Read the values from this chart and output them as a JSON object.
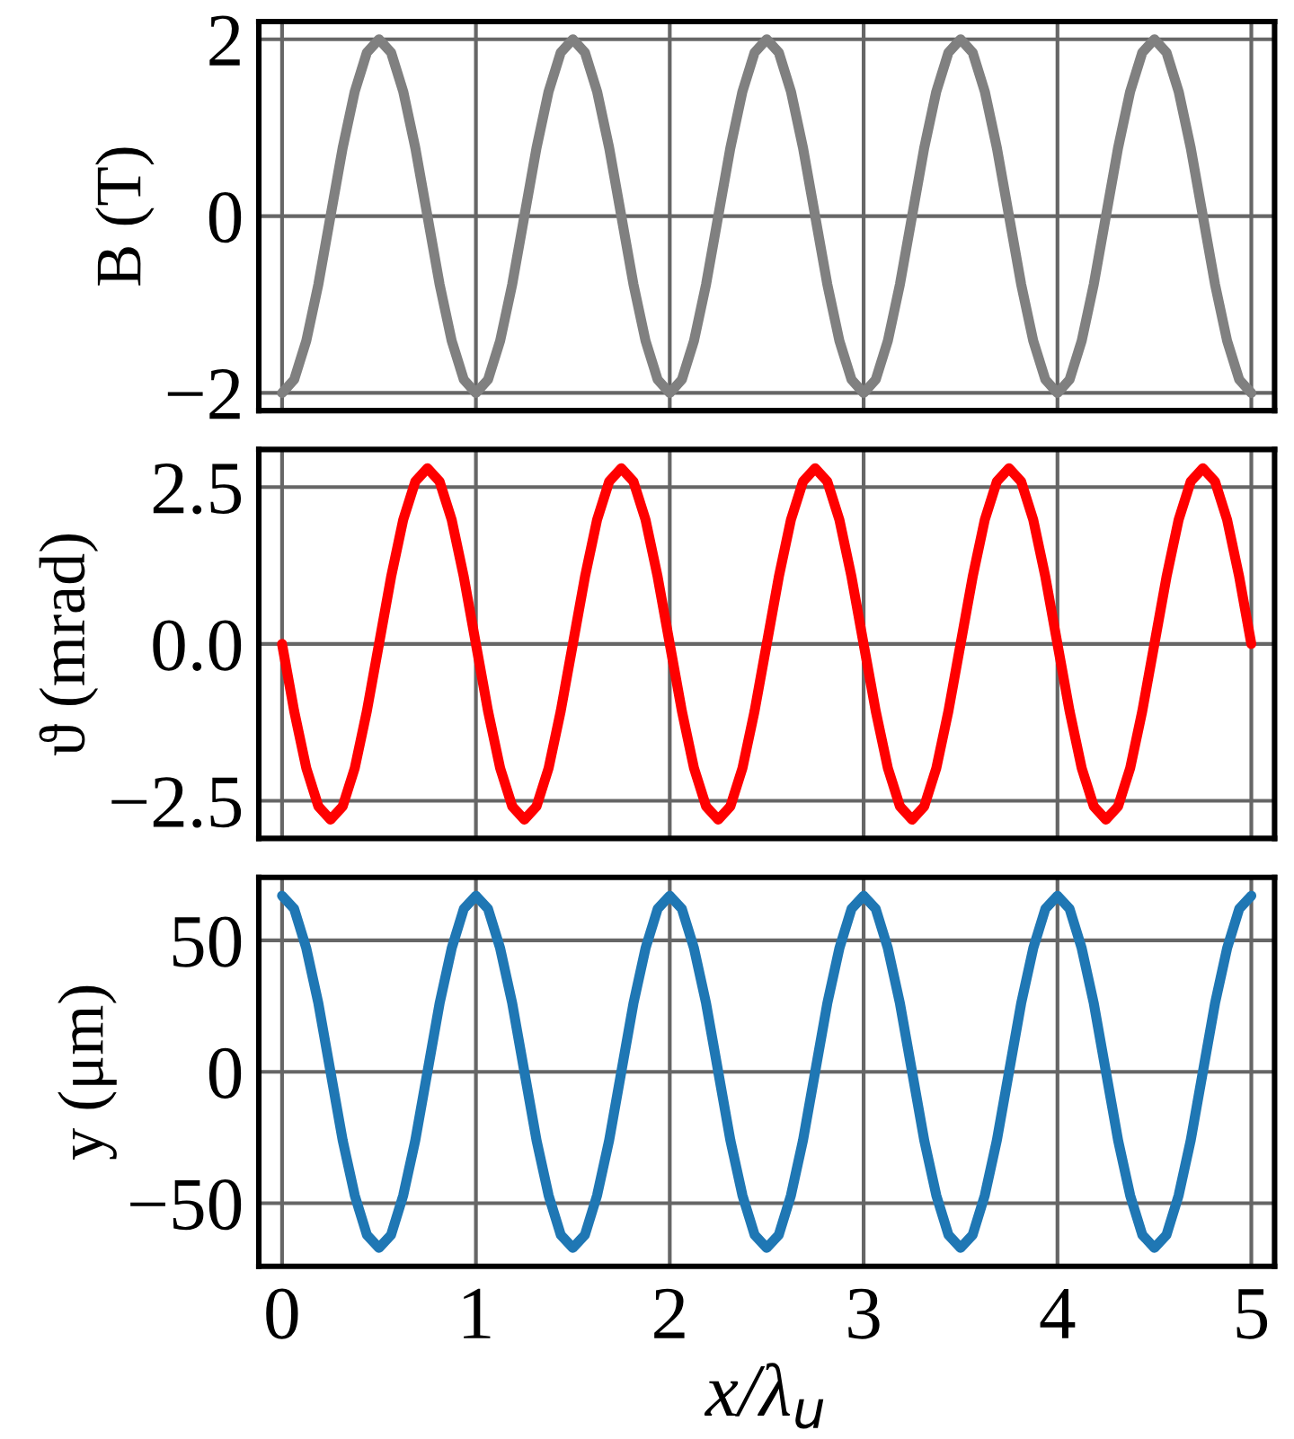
{
  "chart_data": [
    {
      "type": "line",
      "ylabel": "B (T)",
      "tick_labels": "y",
      "grid": true,
      "xlim": [
        -0.12,
        5.12
      ],
      "xticks": [
        0,
        1,
        2,
        3,
        4,
        5
      ],
      "ylim": [
        -2.2,
        2.2
      ],
      "yticks": [
        {
          "value": -2,
          "label": "−2"
        },
        0,
        2
      ],
      "x": [
        0,
        0.0625,
        0.125,
        0.1875,
        0.25,
        0.3125,
        0.375,
        0.4375,
        0.5,
        0.5625,
        0.625,
        0.6875,
        0.75,
        0.8125,
        0.875,
        0.9375,
        1,
        1.0625,
        1.125,
        1.1875,
        1.25,
        1.3125,
        1.375,
        1.4375,
        1.5,
        1.5625,
        1.625,
        1.6875,
        1.75,
        1.8125,
        1.875,
        1.9375,
        2,
        2.0625,
        2.125,
        2.1875,
        2.25,
        2.3125,
        2.375,
        2.4375,
        2.5,
        2.5625,
        2.625,
        2.6875,
        2.75,
        2.8125,
        2.875,
        2.9375,
        3,
        3.0625,
        3.125,
        3.1875,
        3.25,
        3.3125,
        3.375,
        3.4375,
        3.5,
        3.5625,
        3.625,
        3.6875,
        3.75,
        3.8125,
        3.875,
        3.9375,
        4,
        4.0625,
        4.125,
        4.1875,
        4.25,
        4.3125,
        4.375,
        4.4375,
        4.5,
        4.5625,
        4.625,
        4.6875,
        4.75,
        4.8125,
        4.875,
        4.9375,
        5
      ],
      "series": [
        {
          "color": "#808080",
          "values": [
            -2,
            -1.85,
            -1.41,
            -0.77,
            0,
            0.77,
            1.41,
            1.85,
            2,
            1.85,
            1.41,
            0.77,
            0,
            -0.77,
            -1.41,
            -1.85,
            -2,
            -1.85,
            -1.41,
            -0.77,
            0,
            0.77,
            1.41,
            1.85,
            2,
            1.85,
            1.41,
            0.77,
            0,
            -0.77,
            -1.41,
            -1.85,
            -2,
            -1.85,
            -1.41,
            -0.77,
            0,
            0.77,
            1.41,
            1.85,
            2,
            1.85,
            1.41,
            0.77,
            0,
            -0.77,
            -1.41,
            -1.85,
            -2,
            -1.85,
            -1.41,
            -0.77,
            0,
            0.77,
            1.41,
            1.85,
            2,
            1.85,
            1.41,
            0.77,
            0,
            -0.77,
            -1.41,
            -1.85,
            -2,
            -1.85,
            -1.41,
            -0.77,
            0,
            0.77,
            1.41,
            1.85,
            2,
            1.85,
            1.41,
            0.77,
            0,
            -0.77,
            -1.41,
            -1.85,
            -2
          ]
        }
      ]
    },
    {
      "type": "line",
      "ylabel": "ϑ (mrad)",
      "tick_labels": "y",
      "grid": true,
      "xlim": [
        -0.12,
        5.12
      ],
      "xticks": [
        0,
        1,
        2,
        3,
        4,
        5
      ],
      "ylim": [
        -3.1,
        3.1
      ],
      "yticks": [
        {
          "value": -2.5,
          "label": "−2.5"
        },
        {
          "value": 0,
          "label": "0.0"
        },
        2.5
      ],
      "x": [
        0,
        0.0625,
        0.125,
        0.1875,
        0.25,
        0.3125,
        0.375,
        0.4375,
        0.5,
        0.5625,
        0.625,
        0.6875,
        0.75,
        0.8125,
        0.875,
        0.9375,
        1,
        1.0625,
        1.125,
        1.1875,
        1.25,
        1.3125,
        1.375,
        1.4375,
        1.5,
        1.5625,
        1.625,
        1.6875,
        1.75,
        1.8125,
        1.875,
        1.9375,
        2,
        2.0625,
        2.125,
        2.1875,
        2.25,
        2.3125,
        2.375,
        2.4375,
        2.5,
        2.5625,
        2.625,
        2.6875,
        2.75,
        2.8125,
        2.875,
        2.9375,
        3,
        3.0625,
        3.125,
        3.1875,
        3.25,
        3.3125,
        3.375,
        3.4375,
        3.5,
        3.5625,
        3.625,
        3.6875,
        3.75,
        3.8125,
        3.875,
        3.9375,
        4,
        4.0625,
        4.125,
        4.1875,
        4.25,
        4.3125,
        4.375,
        4.4375,
        4.5,
        4.5625,
        4.625,
        4.6875,
        4.75,
        4.8125,
        4.875,
        4.9375,
        5
      ],
      "series": [
        {
          "color": "#ff0000",
          "values": [
            0,
            -1.07,
            -1.98,
            -2.59,
            -2.8,
            -2.59,
            -1.98,
            -1.07,
            0,
            1.07,
            1.98,
            2.59,
            2.8,
            2.59,
            1.98,
            1.07,
            0,
            -1.07,
            -1.98,
            -2.59,
            -2.8,
            -2.59,
            -1.98,
            -1.07,
            0,
            1.07,
            1.98,
            2.59,
            2.8,
            2.59,
            1.98,
            1.07,
            0,
            -1.07,
            -1.98,
            -2.59,
            -2.8,
            -2.59,
            -1.98,
            -1.07,
            0,
            1.07,
            1.98,
            2.59,
            2.8,
            2.59,
            1.98,
            1.07,
            0,
            -1.07,
            -1.98,
            -2.59,
            -2.8,
            -2.59,
            -1.98,
            -1.07,
            0,
            1.07,
            1.98,
            2.59,
            2.8,
            2.59,
            1.98,
            1.07,
            0,
            -1.07,
            -1.98,
            -2.59,
            -2.8,
            -2.59,
            -1.98,
            -1.07,
            0,
            1.07,
            1.98,
            2.59,
            2.8,
            2.59,
            1.98,
            1.07,
            0
          ]
        }
      ]
    },
    {
      "type": "line",
      "ylabel": "y (μm)",
      "xlabel": "x/λ$_{u}$",
      "grid": true,
      "xlim": [
        -0.12,
        5.12
      ],
      "xticks": [
        0,
        1,
        2,
        3,
        4,
        5
      ],
      "ylim": [
        -74,
        74
      ],
      "yticks": [
        {
          "value": -50,
          "label": "−50"
        },
        0,
        50
      ],
      "x": [
        0,
        0.0625,
        0.125,
        0.1875,
        0.25,
        0.3125,
        0.375,
        0.4375,
        0.5,
        0.5625,
        0.625,
        0.6875,
        0.75,
        0.8125,
        0.875,
        0.9375,
        1,
        1.0625,
        1.125,
        1.1875,
        1.25,
        1.3125,
        1.375,
        1.4375,
        1.5,
        1.5625,
        1.625,
        1.6875,
        1.75,
        1.8125,
        1.875,
        1.9375,
        2,
        2.0625,
        2.125,
        2.1875,
        2.25,
        2.3125,
        2.375,
        2.4375,
        2.5,
        2.5625,
        2.625,
        2.6875,
        2.75,
        2.8125,
        2.875,
        2.9375,
        3,
        3.0625,
        3.125,
        3.1875,
        3.25,
        3.3125,
        3.375,
        3.4375,
        3.5,
        3.5625,
        3.625,
        3.6875,
        3.75,
        3.8125,
        3.875,
        3.9375,
        4,
        4.0625,
        4.125,
        4.1875,
        4.25,
        4.3125,
        4.375,
        4.4375,
        4.5,
        4.5625,
        4.625,
        4.6875,
        4.75,
        4.8125,
        4.875,
        4.9375,
        5
      ],
      "series": [
        {
          "color": "#1f77b4",
          "values": [
            67,
            62,
            47,
            26,
            0,
            -26,
            -47,
            -62,
            -67,
            -62,
            -47,
            -26,
            0,
            26,
            47,
            62,
            67,
            62,
            47,
            26,
            0,
            -26,
            -47,
            -62,
            -67,
            -62,
            -47,
            -26,
            0,
            26,
            47,
            62,
            67,
            62,
            47,
            26,
            0,
            -26,
            -47,
            -62,
            -67,
            -62,
            -47,
            -26,
            0,
            26,
            47,
            62,
            67,
            62,
            47,
            26,
            0,
            -26,
            -47,
            -62,
            -67,
            -62,
            -47,
            -26,
            0,
            26,
            47,
            62,
            67,
            62,
            47,
            26,
            0,
            -26,
            -47,
            -62,
            -67,
            -62,
            -47,
            -26,
            0,
            26,
            47,
            62,
            67
          ]
        }
      ]
    }
  ]
}
